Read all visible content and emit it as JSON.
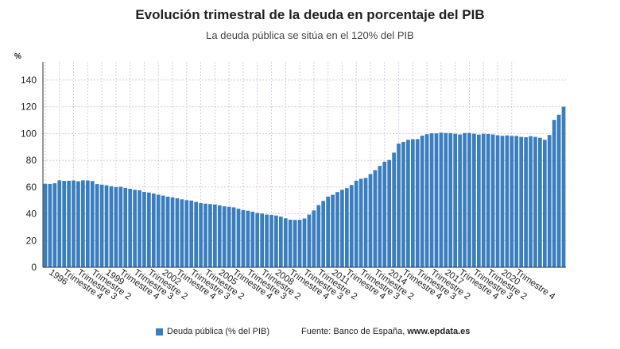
{
  "title": "Evolución trimestral de la deuda en porcentaje del PIB",
  "subtitle": "La deuda pública se sitúa en el 120% del PIB",
  "legend_label": "Deuda pública (% del PIB)",
  "source_prefix": "Fuente: Banco de España, ",
  "source_site": "www.epdata.es",
  "colors": {
    "bar": "#3a7ebf",
    "grid": "#d8c8e0",
    "axis": "#333333"
  },
  "chart_data": {
    "type": "bar",
    "title": "Evolución trimestral de la deuda en porcentaje del PIB",
    "subtitle": "La deuda pública se sitúa en el 120% del PIB",
    "ylabel": "%",
    "xlabel": "",
    "ylim": [
      0,
      150
    ],
    "yticks": [
      0,
      20,
      40,
      60,
      80,
      100,
      120,
      140
    ],
    "grid": true,
    "legend_position": "bottom",
    "series": [
      {
        "name": "Deuda pública (% del PIB)",
        "values": [
          62.4,
          62.3,
          62.8,
          65.0,
          64.6,
          64.7,
          64.9,
          64.3,
          65.0,
          64.9,
          64.5,
          62.2,
          61.8,
          61.3,
          60.6,
          59.9,
          60.2,
          59.3,
          58.7,
          58.0,
          57.6,
          56.4,
          55.9,
          55.2,
          54.3,
          53.6,
          52.8,
          52.3,
          51.6,
          50.8,
          50.2,
          49.9,
          48.9,
          48.0,
          47.6,
          47.3,
          47.0,
          46.3,
          45.6,
          45.2,
          44.8,
          43.8,
          42.8,
          42.3,
          41.6,
          40.6,
          40.2,
          39.4,
          39.1,
          38.7,
          37.9,
          36.6,
          35.6,
          35.4,
          35.5,
          36.5,
          39.4,
          42.5,
          46.5,
          49.6,
          52.8,
          54.2,
          56.2,
          57.9,
          59.2,
          61.5,
          64.7,
          66.2,
          66.8,
          69.7,
          72.6,
          75.8,
          78.9,
          80.2,
          85.7,
          92.5,
          93.7,
          95.3,
          95.7,
          95.8,
          98.4,
          99.5,
          100.2,
          100.1,
          100.6,
          100.4,
          100.3,
          99.8,
          99.3,
          100.4,
          100.4,
          99.8,
          99.2,
          99.8,
          99.6,
          99.3,
          98.7,
          98.3,
          98.6,
          98.2,
          98.2,
          97.5,
          97.2,
          98.0,
          97.5,
          96.8,
          95.3,
          98.9,
          110.2,
          114.0,
          120.0
        ]
      }
    ],
    "x_tick_labels": [
      "1996",
      "Trimestre 4",
      "Trimestre 3",
      "Trimestre 2",
      "1999",
      "Trimestre 4",
      "Trimestre 3",
      "Trimestre 2",
      "2002",
      "Trimestre 4",
      "Trimestre 3",
      "Trimestre 2",
      "2005",
      "Trimestre 4",
      "Trimestre 3",
      "Trimestre 2",
      "2008",
      "Trimestre 4",
      "Trimestre 3",
      "Trimestre 2",
      "2011",
      "Trimestre 4",
      "Trimestre 3",
      "Trimestre 2",
      "2014",
      "Trimestre 4",
      "Trimestre 3",
      "Trimestre 2",
      "2017",
      "Trimestre 4",
      "Trimestre 3",
      "Trimestre 2",
      "2020",
      "Trimestre 4"
    ]
  }
}
